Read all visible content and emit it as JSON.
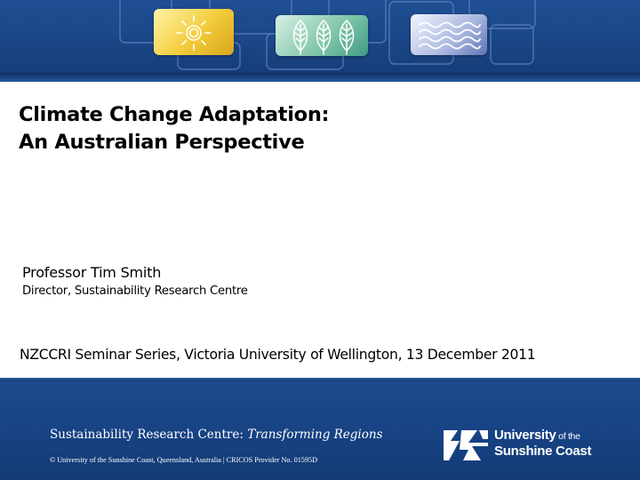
{
  "slide": {
    "title_line1": "Climate Change Adaptation:",
    "title_line2": "An Australian Perspective",
    "author_name": "Professor Tim Smith",
    "author_role": "Director, Sustainability Research Centre",
    "event": "NZCCRI Seminar Series, Victoria University of Wellington, 13 December 2011"
  },
  "header": {
    "icons": [
      "sun-icon",
      "leaves-icon",
      "waves-icon"
    ]
  },
  "footer": {
    "tagline_main": "Sustainability Research Centre: ",
    "tagline_em": "Transforming Regions",
    "copyright": "© University of the Sunshine Coast, Queensland, Australia | CRICOS Provider No. 01595D",
    "logo_line1": "University",
    "logo_line1_small": " of the",
    "logo_line2": "Sunshine Coast"
  },
  "colors": {
    "brand_blue": "#1a4686",
    "footer_blue": "#174283",
    "sun_tile": "#f2cc3a",
    "leaf_tile": "#7cc3a6",
    "wave_tile": "#a9b7df"
  }
}
